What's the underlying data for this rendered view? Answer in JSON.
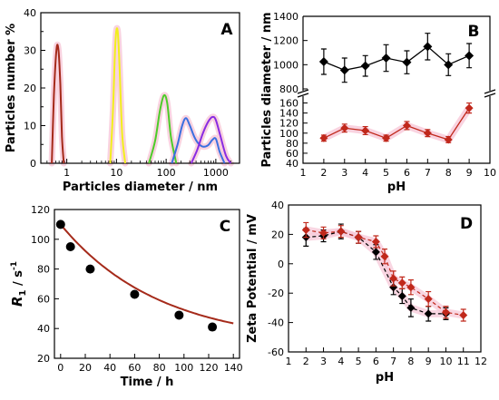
{
  "chart_data": [
    {
      "panel": "A",
      "type": "line",
      "xlabel": "Particles diameter / nm",
      "ylabel": "Particles number %",
      "xscale": "log",
      "xlim": [
        0.3,
        3000
      ],
      "ylim": [
        0,
        40
      ],
      "xticks": [
        1,
        10,
        100,
        1000
      ],
      "xtick_labels": [
        "1",
        "10",
        "100",
        "1000"
      ],
      "yticks": [
        0,
        10,
        20,
        30,
        40
      ],
      "series": [
        {
          "color": "#a52a1a",
          "x": [
            0.5,
            0.55,
            0.62,
            0.68,
            0.74,
            0.8,
            0.87
          ],
          "y": [
            0,
            18,
            30.3,
            30,
            21,
            7,
            0
          ]
        },
        {
          "color": "#f2ef1c",
          "x": [
            7.5,
            8.5,
            9.5,
            10.5,
            11.5,
            13,
            15
          ],
          "y": [
            0,
            14,
            32,
            35.5,
            26,
            8,
            0
          ]
        },
        {
          "color": "#4ccc28",
          "x": [
            45,
            60,
            75,
            90,
            105,
            125,
            160
          ],
          "y": [
            0,
            6,
            14,
            18,
            16,
            7,
            0
          ]
        },
        {
          "color": "#3a6fe0",
          "x": [
            130,
            170,
            210,
            250,
            300,
            370,
            450,
            560,
            700,
            850,
            1000,
            1200,
            1500
          ],
          "y": [
            0,
            5,
            10,
            12,
            10,
            7,
            5.2,
            4.4,
            4.8,
            6.2,
            6.5,
            3,
            0
          ]
        },
        {
          "color": "#8a2be2",
          "x": [
            320,
            420,
            550,
            700,
            850,
            1000,
            1250,
            1600,
            2000
          ],
          "y": [
            0,
            3.5,
            8,
            11,
            12.3,
            11.5,
            7,
            2,
            0
          ]
        }
      ]
    },
    {
      "panel": "B",
      "type": "line",
      "xlabel": "pH",
      "ylabel": "Particles diameter / nm",
      "xlim": [
        1,
        10
      ],
      "xticks": [
        1,
        2,
        3,
        4,
        5,
        6,
        7,
        8,
        9,
        10
      ],
      "y_axis_break": true,
      "upper_ylim": [
        800,
        1400
      ],
      "upper_yticks": [
        800,
        1000,
        1200,
        1400
      ],
      "lower_ylim": [
        40,
        170
      ],
      "lower_yticks": [
        40,
        60,
        80,
        100,
        120,
        140,
        160
      ],
      "series": [
        {
          "color": "#000000",
          "x": [
            2,
            3,
            4,
            5,
            6,
            7,
            8,
            9
          ],
          "y": [
            1025,
            955,
            990,
            1055,
            1020,
            1150,
            1000,
            1075
          ],
          "err": [
            105,
            100,
            85,
            110,
            95,
            110,
            90,
            100
          ]
        },
        {
          "color": "#c0281b",
          "x": [
            2,
            3,
            4,
            5,
            6,
            7,
            8,
            9
          ],
          "y": [
            90,
            110,
            105,
            90,
            115,
            100,
            87,
            150
          ],
          "err": [
            6,
            8,
            8,
            6,
            8,
            7,
            6,
            10
          ]
        }
      ]
    },
    {
      "panel": "C",
      "type": "scatter",
      "xlabel": "Time / h",
      "ylabel_main": "R",
      "ylabel_sub": "1",
      "ylabel_unit": " / s",
      "ylabel_sup": "-1",
      "xlim": [
        -5,
        145
      ],
      "ylim": [
        20,
        120
      ],
      "xticks": [
        0,
        20,
        40,
        60,
        80,
        100,
        120,
        140
      ],
      "yticks": [
        20,
        40,
        60,
        80,
        100,
        120
      ],
      "points": {
        "x": [
          0,
          8,
          24,
          60,
          96,
          123
        ],
        "y": [
          110,
          95,
          80,
          63,
          49,
          41
        ]
      },
      "fit_color": "#a52a1a",
      "point_color": "#000000"
    },
    {
      "panel": "D",
      "type": "line",
      "xlabel": "pH",
      "ylabel": "Zeta Potential / mV",
      "xlim": [
        1,
        12
      ],
      "ylim": [
        -60,
        40
      ],
      "xticks": [
        1,
        2,
        3,
        4,
        5,
        6,
        7,
        8,
        9,
        10,
        11,
        12
      ],
      "yticks": [
        -60,
        -40,
        -20,
        0,
        20,
        40
      ],
      "series": [
        {
          "color": "#000000",
          "x": [
            2,
            3,
            4,
            5,
            6,
            7,
            7.5,
            8,
            9,
            10
          ],
          "y": [
            18,
            19,
            22,
            18,
            8,
            -16,
            -22,
            -30,
            -34,
            -34
          ],
          "err": [
            6,
            4,
            5,
            4,
            5,
            5,
            5,
            6,
            5,
            4
          ]
        },
        {
          "color": "#c0281b",
          "x": [
            2,
            3,
            4,
            5,
            6,
            6.5,
            7,
            7.5,
            8,
            9,
            10,
            11
          ],
          "y": [
            23,
            21,
            22,
            18,
            15,
            5,
            -10,
            -13,
            -16,
            -24,
            -33,
            -35
          ],
          "err": [
            5,
            4,
            4,
            4,
            4,
            5,
            5,
            4,
            5,
            5,
            4,
            4
          ]
        }
      ]
    }
  ],
  "panel_labels": {
    "A": "A",
    "B": "B",
    "C": "C",
    "D": "D"
  }
}
